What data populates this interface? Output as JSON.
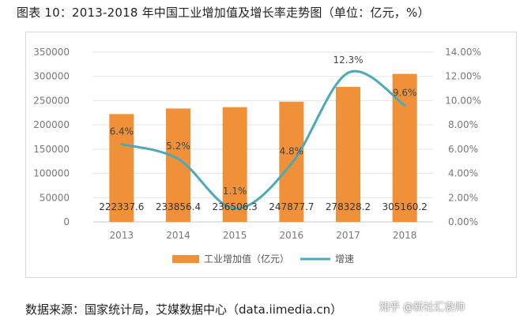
{
  "title": "图表 10：2013-2018 年中国工业增加值及增长率走势图（单位：亿元，%）",
  "source": "数据来源：国家统计局，艾媒数据中心（data.iimedia.cn）",
  "watermark": "知乎 @新社汇袁帅",
  "colors": {
    "bar": "#f0913a",
    "line": "#4ba9b8",
    "grid": "#e3e3e3",
    "axis": "#c8c8c8"
  },
  "chart_data": {
    "type": "bar",
    "categories": [
      "2013",
      "2014",
      "2015",
      "2016",
      "2017",
      "2018"
    ],
    "series": [
      {
        "name": "工业增加值（亿元）",
        "type": "bar",
        "axis": "left",
        "values": [
          222337.6,
          233856.4,
          236506.3,
          247877.7,
          278328.2,
          305160.2
        ],
        "labels": [
          "222337.6",
          "233856.4",
          "236506.3",
          "247877.7",
          "278328.2",
          "305160.2"
        ]
      },
      {
        "name": "增速",
        "type": "line",
        "axis": "right",
        "values": [
          6.4,
          5.2,
          1.1,
          4.8,
          12.3,
          9.6
        ],
        "labels": [
          "6.4%",
          "5.2%",
          "1.1%",
          "4.8%",
          "12.3%",
          "9.6%"
        ]
      }
    ],
    "y_left": {
      "ylim": [
        0,
        350000
      ],
      "ticks": [
        0,
        50000,
        100000,
        150000,
        200000,
        250000,
        300000,
        350000
      ],
      "tick_labels": [
        "0",
        "50000",
        "100000",
        "150000",
        "200000",
        "250000",
        "300000",
        "350000"
      ]
    },
    "y_right": {
      "ylim": [
        0,
        14
      ],
      "ticks": [
        0,
        2,
        4,
        6,
        8,
        10,
        12,
        14
      ],
      "tick_labels": [
        "0.00%",
        "2.00%",
        "4.00%",
        "6.00%",
        "8.00%",
        "10.00%",
        "12.00%",
        "14.00%"
      ]
    },
    "grid": true,
    "legend_position": "bottom"
  }
}
